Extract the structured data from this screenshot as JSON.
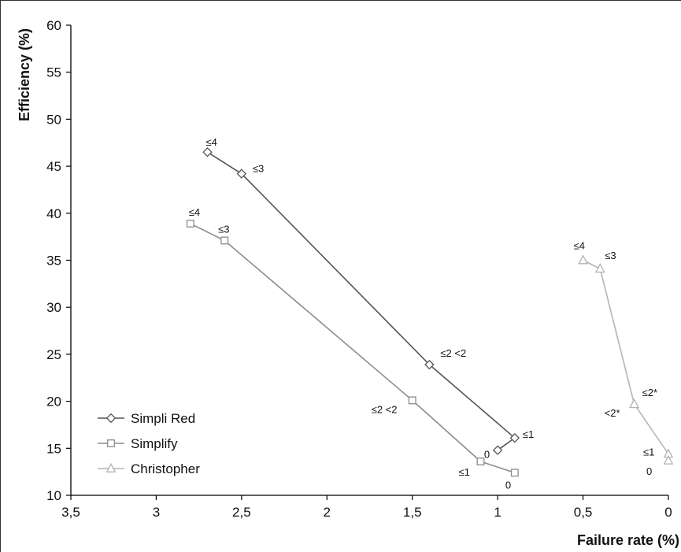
{
  "chart_data": {
    "type": "line",
    "xlabel": "Failure rate (%)",
    "ylabel": "Efficiency (%)",
    "x_reversed": true,
    "xlim": [
      0,
      3.5
    ],
    "ylim": [
      10,
      60
    ],
    "x_ticks": [
      "3,5",
      "3",
      "2,5",
      "2",
      "1,5",
      "1",
      "0,5",
      "0"
    ],
    "x_tick_values": [
      3.5,
      3,
      2.5,
      2,
      1.5,
      1,
      0.5,
      0
    ],
    "y_ticks": [
      "10",
      "15",
      "20",
      "25",
      "30",
      "35",
      "40",
      "45",
      "50",
      "55",
      "60"
    ],
    "y_tick_values": [
      10,
      15,
      20,
      25,
      30,
      35,
      40,
      45,
      50,
      55,
      60
    ],
    "grid": false,
    "legend_position": "bottom-left",
    "series": [
      {
        "name": "Simpli Red",
        "marker": "diamond",
        "color": "#555555",
        "points": [
          {
            "x": 2.7,
            "y": 46.5,
            "label": "≤4"
          },
          {
            "x": 2.5,
            "y": 44.2,
            "label": "≤3"
          },
          {
            "x": 1.4,
            "y": 23.9,
            "label": "≤2 <2"
          },
          {
            "x": 0.9,
            "y": 16.1,
            "label": "≤1"
          },
          {
            "x": 1.0,
            "y": 14.8,
            "label": "0"
          }
        ]
      },
      {
        "name": "Simplify",
        "marker": "square",
        "color": "#8c8c8c",
        "points": [
          {
            "x": 2.8,
            "y": 38.9,
            "label": "≤4"
          },
          {
            "x": 2.6,
            "y": 37.1,
            "label": "≤3"
          },
          {
            "x": 1.5,
            "y": 20.1,
            "label": "≤2 <2"
          },
          {
            "x": 1.1,
            "y": 13.6,
            "label": "≤1"
          },
          {
            "x": 0.9,
            "y": 12.4,
            "label": "0"
          }
        ]
      },
      {
        "name": "Christopher",
        "marker": "triangle",
        "color": "#b4b4b4",
        "points": [
          {
            "x": 0.5,
            "y": 35.0,
            "label": "≤4"
          },
          {
            "x": 0.4,
            "y": 34.1,
            "label": "≤3"
          },
          {
            "x": 0.2,
            "y": 19.7,
            "label": "<2*"
          },
          {
            "x": 0.2,
            "y": 19.7,
            "label": "≤2*"
          },
          {
            "x": 0.0,
            "y": 14.4,
            "label": "≤1"
          },
          {
            "x": 0.0,
            "y": 13.7,
            "label": "0"
          }
        ]
      }
    ]
  }
}
